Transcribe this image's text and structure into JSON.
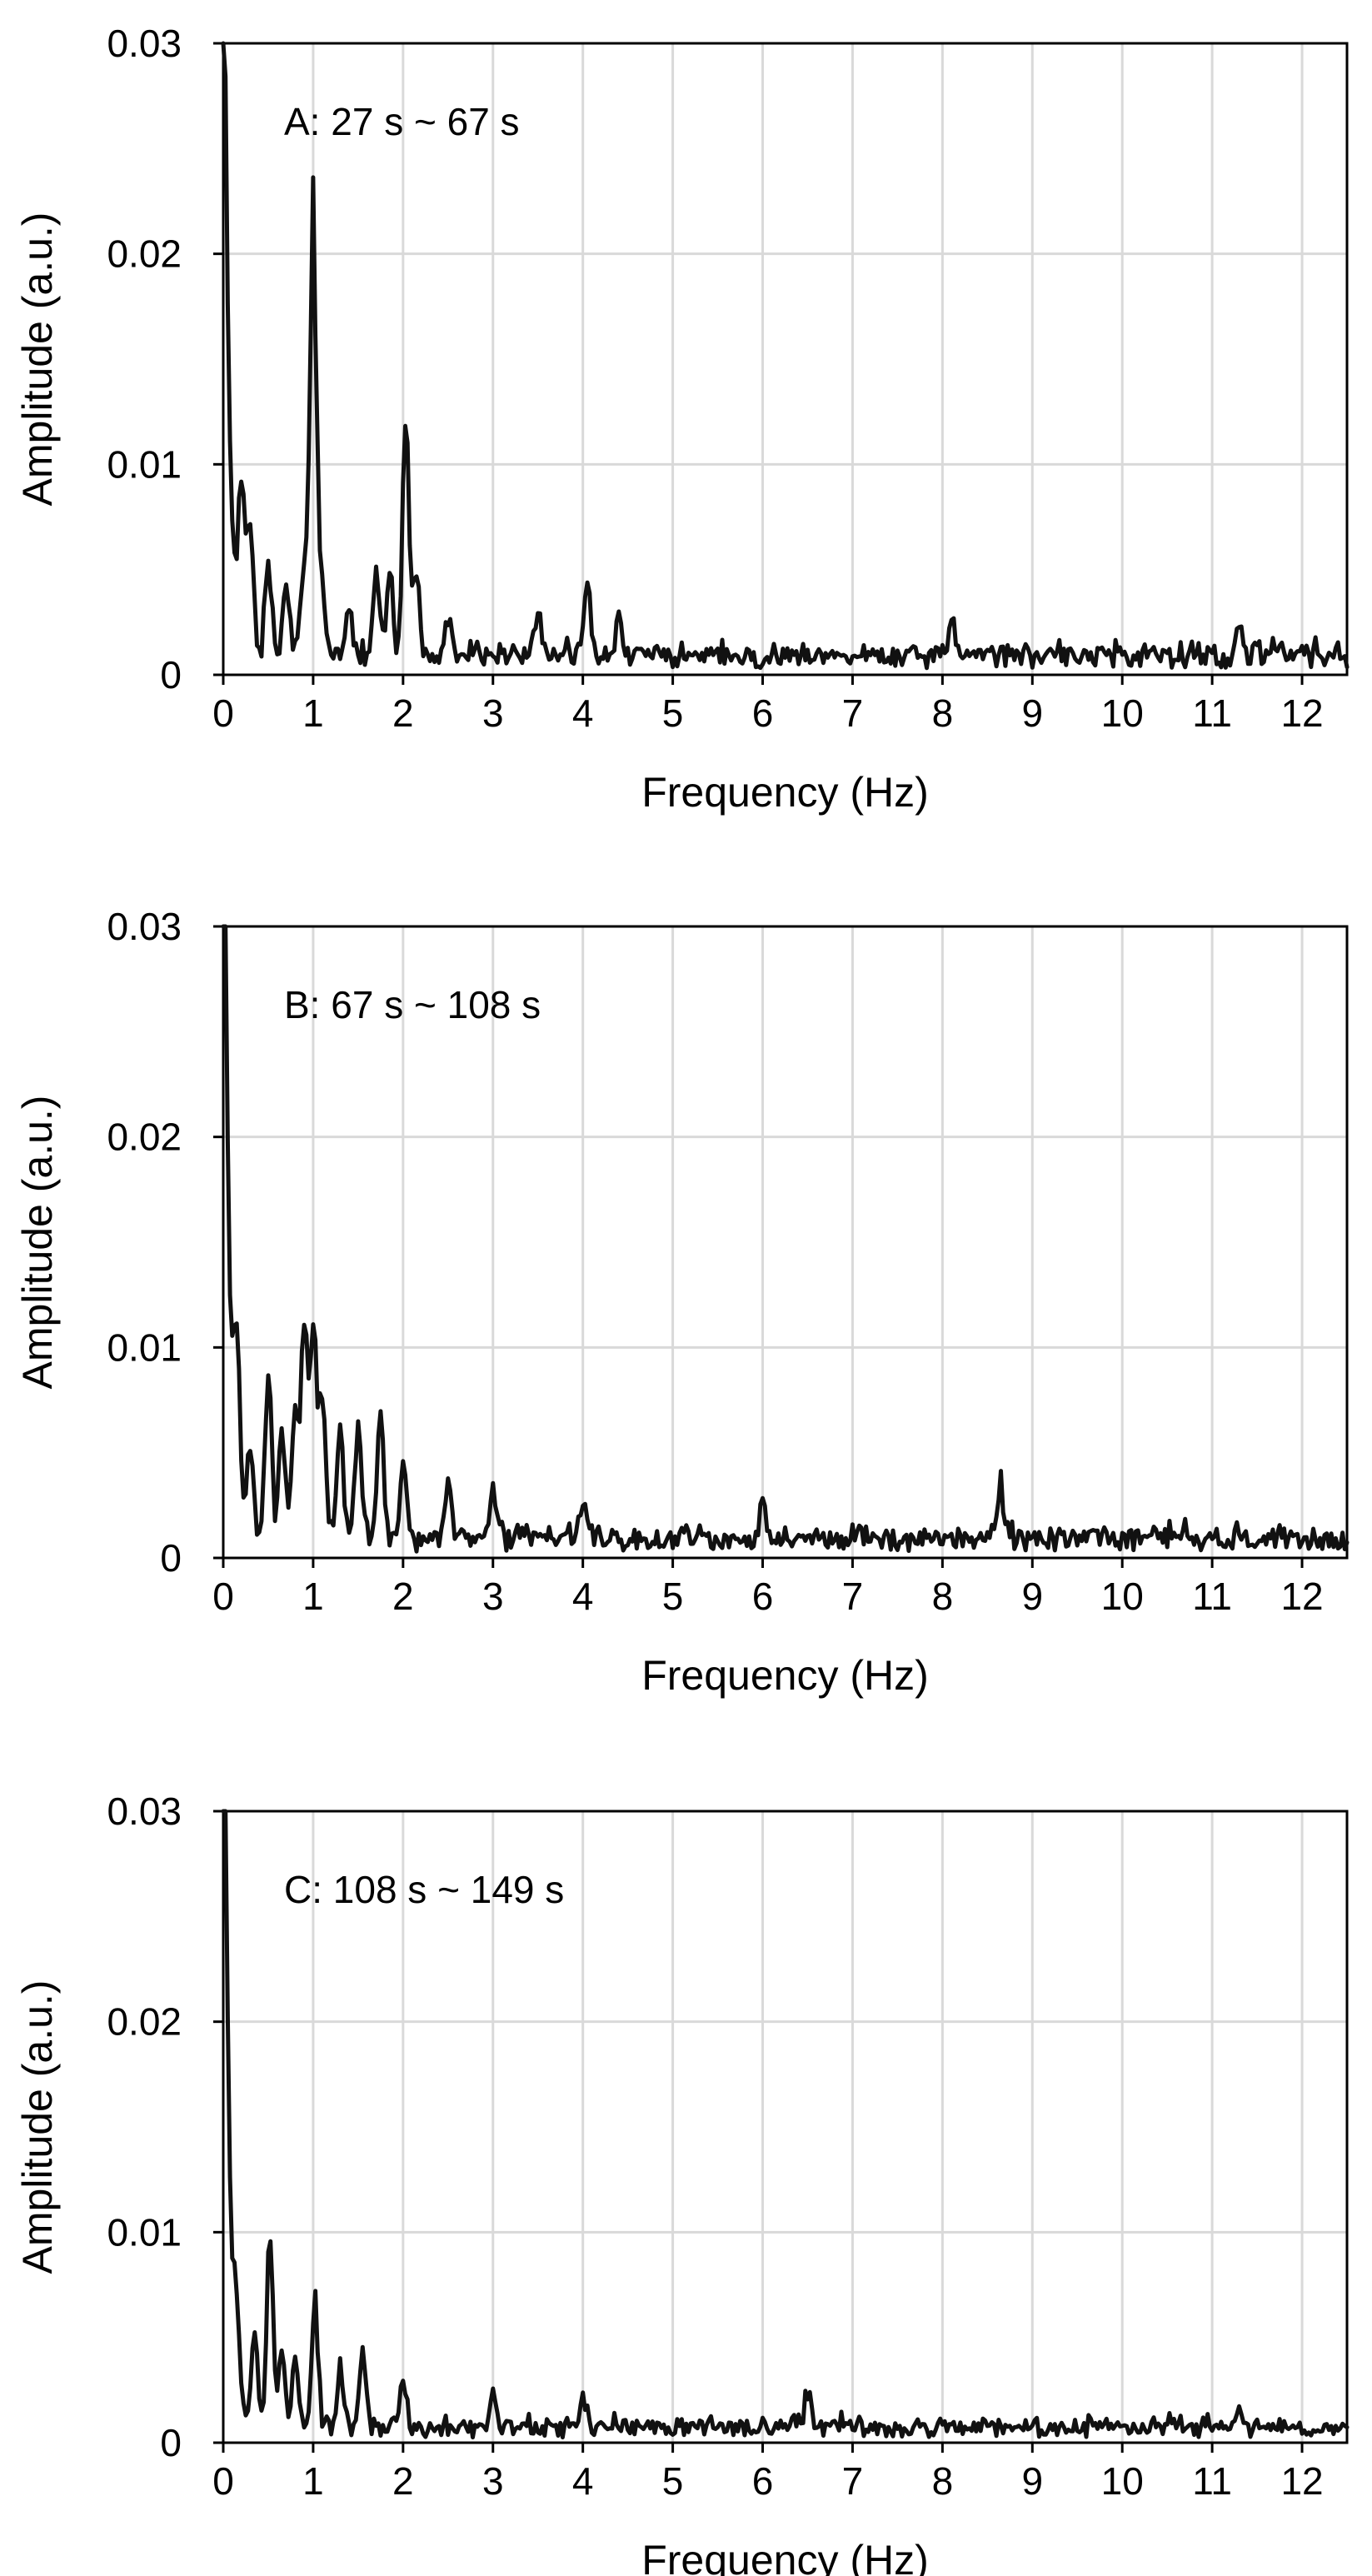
{
  "chart_data": [
    {
      "type": "line",
      "annotation": "A: 27 s ~ 67 s",
      "xlabel": "Frequency (Hz)",
      "ylabel": "Amplitude (a.u.)",
      "xlim": [
        0,
        12.5
      ],
      "ylim": [
        0,
        0.03
      ],
      "xticks": [
        "0",
        "1",
        "2",
        "3",
        "4",
        "5",
        "6",
        "7",
        "8",
        "9",
        "10",
        "11",
        "12"
      ],
      "yticks": [
        "0",
        "0.01",
        "0.02",
        "0.03"
      ],
      "grid": true,
      "baseline": 0.001,
      "noise": 0.0007,
      "decay_amp": 0.045,
      "decay_tau": 0.05,
      "peaks": [
        {
          "f": 0.2,
          "a": 0.0085
        },
        {
          "f": 0.3,
          "a": 0.007
        },
        {
          "f": 0.5,
          "a": 0.005
        },
        {
          "f": 0.7,
          "a": 0.004
        },
        {
          "f": 0.9,
          "a": 0.0045
        },
        {
          "f": 1.0,
          "a": 0.0225
        },
        {
          "f": 1.1,
          "a": 0.004
        },
        {
          "f": 1.4,
          "a": 0.003
        },
        {
          "f": 1.7,
          "a": 0.0045
        },
        {
          "f": 1.85,
          "a": 0.0045
        },
        {
          "f": 2.03,
          "a": 0.0132
        },
        {
          "f": 2.15,
          "a": 0.0045
        },
        {
          "f": 2.5,
          "a": 0.002
        },
        {
          "f": 3.5,
          "a": 0.0025
        },
        {
          "f": 4.05,
          "a": 0.0036
        },
        {
          "f": 4.4,
          "a": 0.002
        },
        {
          "f": 8.1,
          "a": 0.002
        },
        {
          "f": 11.3,
          "a": 0.0018
        }
      ]
    },
    {
      "type": "line",
      "annotation": "B: 67 s ~ 108 s",
      "xlabel": "Frequency (Hz)",
      "ylabel": "Amplitude (a.u.)",
      "xlim": [
        0,
        12.5
      ],
      "ylim": [
        0,
        0.03
      ],
      "xticks": [
        "0",
        "1",
        "2",
        "3",
        "4",
        "5",
        "6",
        "7",
        "8",
        "9",
        "10",
        "11",
        "12"
      ],
      "yticks": [
        "0",
        "0.01",
        "0.02",
        "0.03"
      ],
      "grid": true,
      "baseline": 0.001,
      "noise": 0.0008,
      "decay_amp": 0.05,
      "decay_tau": 0.05,
      "peaks": [
        {
          "f": 0.15,
          "a": 0.0085
        },
        {
          "f": 0.3,
          "a": 0.0045
        },
        {
          "f": 0.5,
          "a": 0.0085
        },
        {
          "f": 0.65,
          "a": 0.006
        },
        {
          "f": 0.8,
          "a": 0.0065
        },
        {
          "f": 0.9,
          "a": 0.011
        },
        {
          "f": 1.0,
          "a": 0.0112
        },
        {
          "f": 1.1,
          "a": 0.0075
        },
        {
          "f": 1.3,
          "a": 0.006
        },
        {
          "f": 1.5,
          "a": 0.006
        },
        {
          "f": 1.75,
          "a": 0.0062
        },
        {
          "f": 2.0,
          "a": 0.0035
        },
        {
          "f": 2.5,
          "a": 0.003
        },
        {
          "f": 3.0,
          "a": 0.0025
        },
        {
          "f": 4.0,
          "a": 0.002
        },
        {
          "f": 6.0,
          "a": 0.0018
        },
        {
          "f": 8.65,
          "a": 0.0025
        }
      ]
    },
    {
      "type": "line",
      "annotation": "C: 108 s ~ 149 s",
      "xlabel": "Frequency (Hz)",
      "ylabel": "Amplitude (a.u.)",
      "xlim": [
        0,
        12.5
      ],
      "ylim": [
        0,
        0.03
      ],
      "xticks": [
        "0",
        "1",
        "2",
        "3",
        "4",
        "5",
        "6",
        "7",
        "8",
        "9",
        "10",
        "11",
        "12"
      ],
      "yticks": [
        "0",
        "0.01",
        "0.02",
        "0.03"
      ],
      "grid": true,
      "baseline": 0.0008,
      "noise": 0.0006,
      "decay_amp": 0.06,
      "decay_tau": 0.045,
      "peaks": [
        {
          "f": 0.15,
          "a": 0.005
        },
        {
          "f": 0.35,
          "a": 0.0045
        },
        {
          "f": 0.52,
          "a": 0.0096
        },
        {
          "f": 0.65,
          "a": 0.004
        },
        {
          "f": 0.8,
          "a": 0.0035
        },
        {
          "f": 1.02,
          "a": 0.0065
        },
        {
          "f": 1.3,
          "a": 0.003
        },
        {
          "f": 1.55,
          "a": 0.0037
        },
        {
          "f": 2.0,
          "a": 0.0025
        },
        {
          "f": 3.0,
          "a": 0.002
        },
        {
          "f": 4.0,
          "a": 0.0018
        },
        {
          "f": 6.5,
          "a": 0.0015
        },
        {
          "f": 11.3,
          "a": 0.0013
        }
      ]
    }
  ]
}
